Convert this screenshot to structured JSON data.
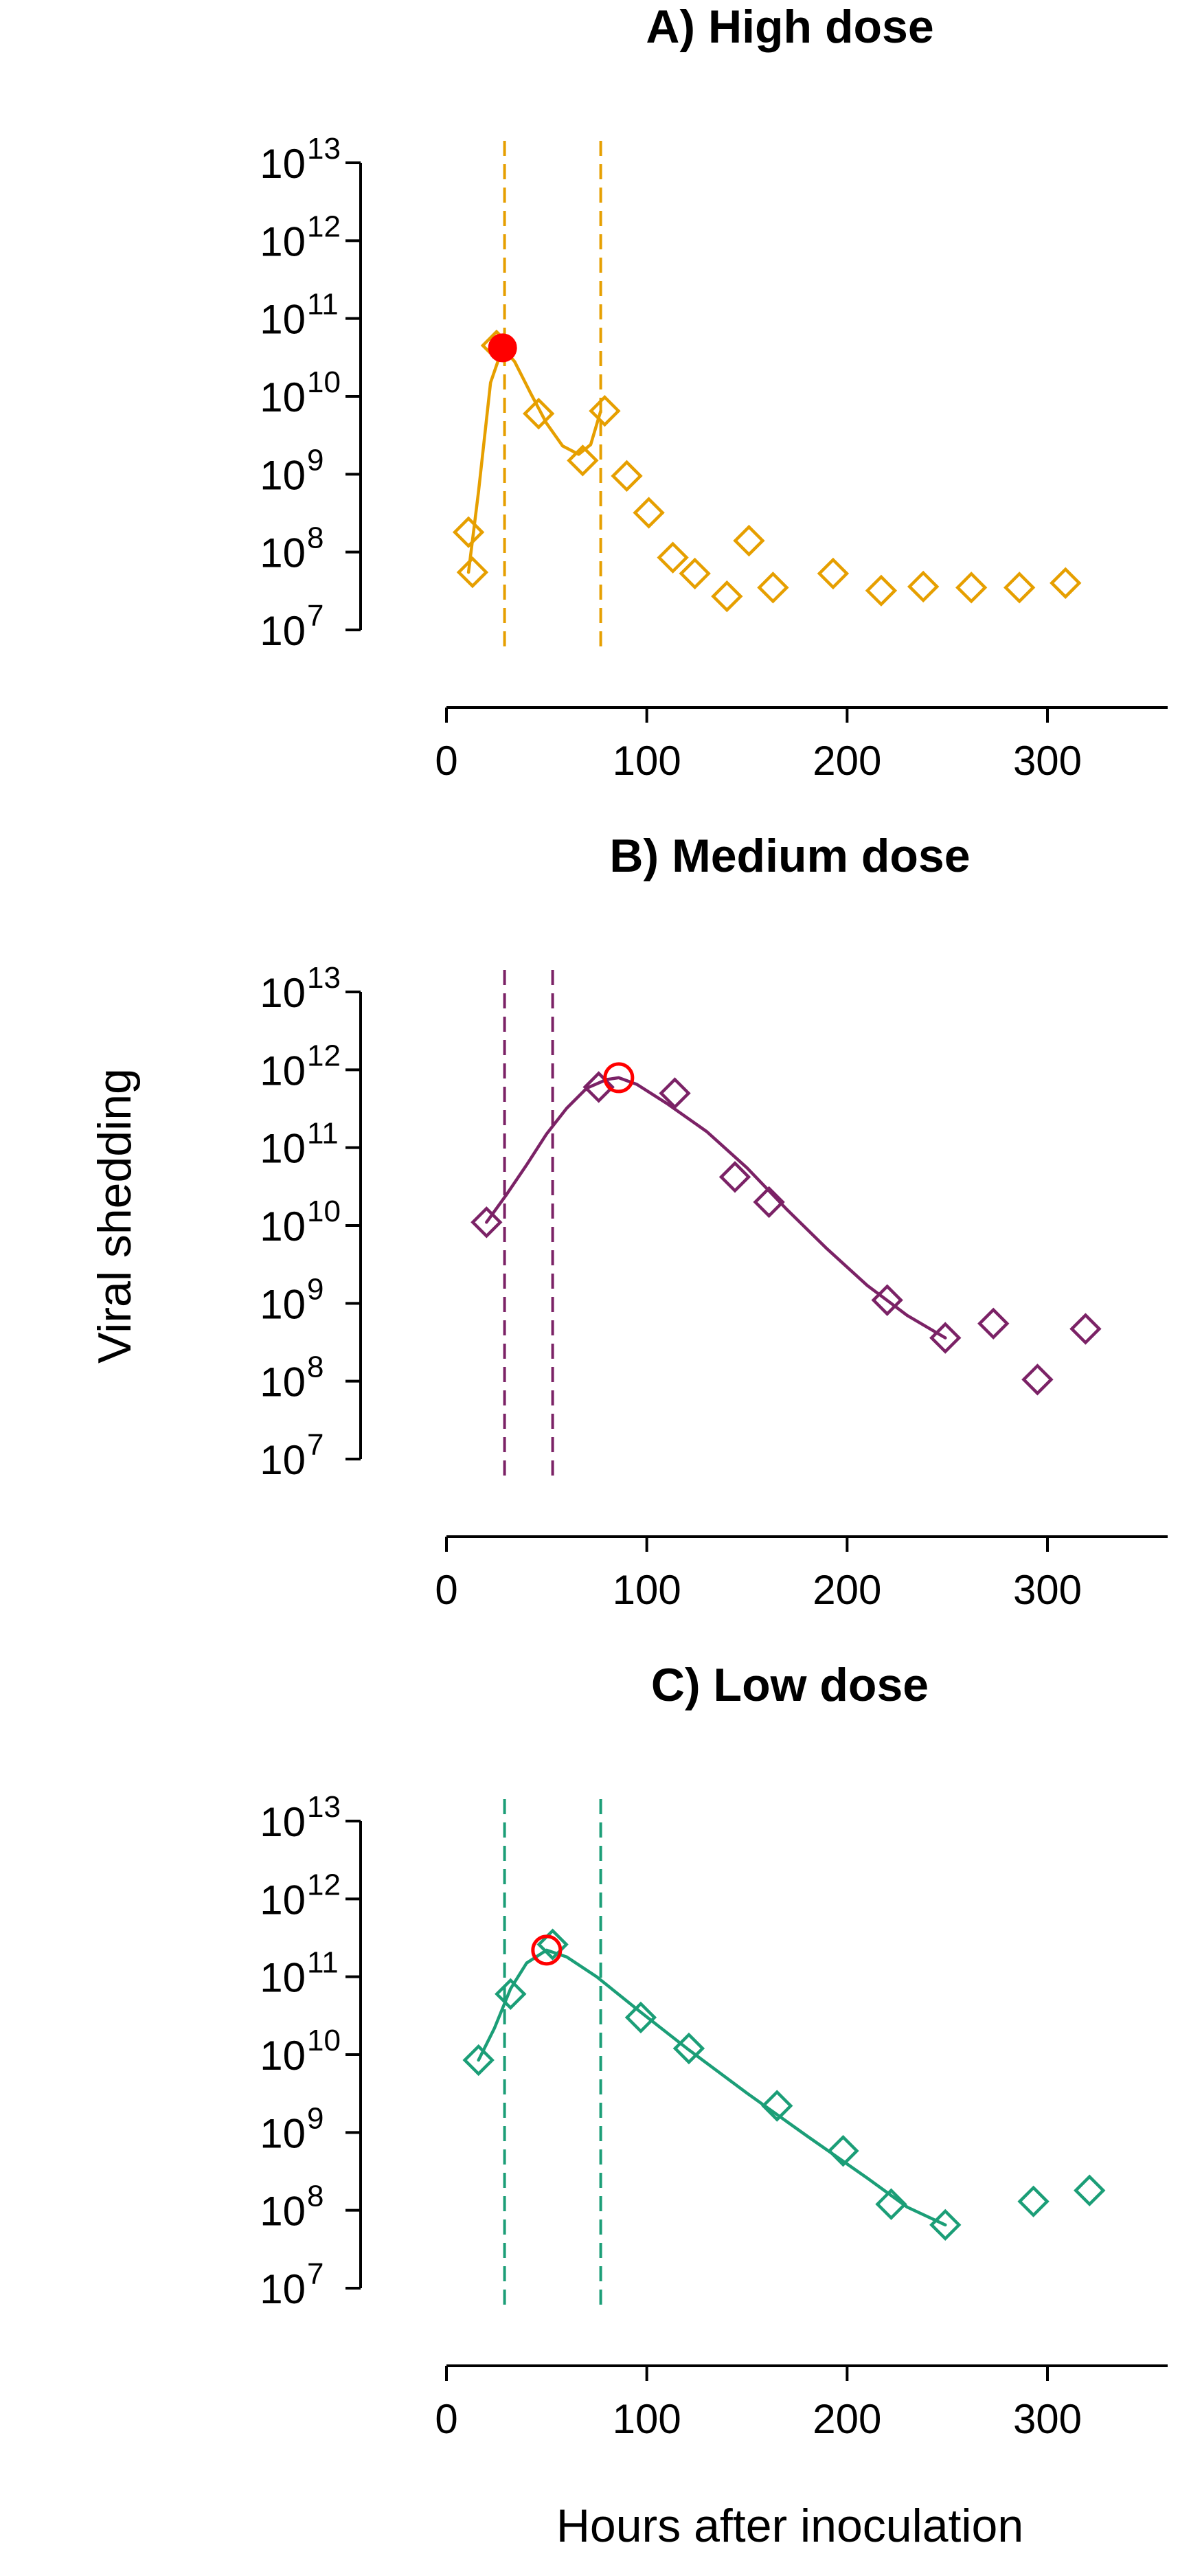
{
  "figure": {
    "ylabel": "Viral shedding",
    "xlabel": "Hours after inoculation"
  },
  "chart_data": [
    {
      "type": "scatter",
      "title": "A) High dose",
      "color": "#E69F00",
      "y_scale": "log",
      "ylim": [
        10000000.0,
        10000000000000.0
      ],
      "y_ticks": [
        {
          "base": "10",
          "exp": "7"
        },
        {
          "base": "10",
          "exp": "8"
        },
        {
          "base": "10",
          "exp": "9"
        },
        {
          "base": "10",
          "exp": "10"
        },
        {
          "base": "10",
          "exp": "11"
        },
        {
          "base": "10",
          "exp": "12"
        },
        {
          "base": "10",
          "exp": "13"
        }
      ],
      "xlim": [
        0,
        360
      ],
      "x_ticks": [
        "0",
        "100",
        "200",
        "300"
      ],
      "vlines": [
        29,
        77
      ],
      "points": [
        {
          "x": 11,
          "y": 180000000.0
        },
        {
          "x": 13,
          "y": 55000000.0
        },
        {
          "x": 25,
          "y": 45000000000.0
        },
        {
          "x": 46,
          "y": 6000000000.0
        },
        {
          "x": 68,
          "y": 1500000000.0
        },
        {
          "x": 79,
          "y": 6500000000.0
        },
        {
          "x": 90,
          "y": 950000000.0
        },
        {
          "x": 101,
          "y": 320000000.0
        },
        {
          "x": 113,
          "y": 85000000.0
        },
        {
          "x": 124,
          "y": 53000000.0
        },
        {
          "x": 140,
          "y": 27000000.0
        },
        {
          "x": 151,
          "y": 140000000.0
        },
        {
          "x": 163,
          "y": 35000000.0
        },
        {
          "x": 193,
          "y": 53000000.0
        },
        {
          "x": 217,
          "y": 32000000.0
        },
        {
          "x": 238,
          "y": 36000000.0
        },
        {
          "x": 262,
          "y": 35000000.0
        },
        {
          "x": 286,
          "y": 35000000.0
        },
        {
          "x": 309,
          "y": 40000000.0
        }
      ],
      "fit": [
        {
          "x": 11,
          "y": 55000000.0
        },
        {
          "x": 16,
          "y": 600000000.0
        },
        {
          "x": 22,
          "y": 15000000000.0
        },
        {
          "x": 28,
          "y": 42000000000.0
        },
        {
          "x": 34,
          "y": 28000000000.0
        },
        {
          "x": 42,
          "y": 11000000000.0
        },
        {
          "x": 50,
          "y": 4500000000.0
        },
        {
          "x": 58,
          "y": 2300000000.0
        },
        {
          "x": 66,
          "y": 1800000000.0
        },
        {
          "x": 72,
          "y": 2400000000.0
        },
        {
          "x": 77,
          "y": 6500000000.0
        }
      ],
      "peak": {
        "x": 28,
        "y": 42000000000.0,
        "filled": true
      }
    },
    {
      "type": "scatter",
      "title": "B) Medium dose",
      "color": "#7B2266",
      "y_scale": "log",
      "ylim": [
        10000000.0,
        10000000000000.0
      ],
      "y_ticks": [
        {
          "base": "10",
          "exp": "7"
        },
        {
          "base": "10",
          "exp": "8"
        },
        {
          "base": "10",
          "exp": "9"
        },
        {
          "base": "10",
          "exp": "10"
        },
        {
          "base": "10",
          "exp": "11"
        },
        {
          "base": "10",
          "exp": "12"
        },
        {
          "base": "10",
          "exp": "13"
        }
      ],
      "xlim": [
        0,
        360
      ],
      "x_ticks": [
        "0",
        "100",
        "200",
        "300"
      ],
      "vlines": [
        29,
        53
      ],
      "points": [
        {
          "x": 20,
          "y": 11000000000.0
        },
        {
          "x": 76,
          "y": 600000000000.0
        },
        {
          "x": 114,
          "y": 500000000000.0
        },
        {
          "x": 144,
          "y": 42000000000.0
        },
        {
          "x": 161,
          "y": 20000000000.0
        },
        {
          "x": 220,
          "y": 1100000000.0
        },
        {
          "x": 249,
          "y": 360000000.0
        },
        {
          "x": 273,
          "y": 550000000.0
        },
        {
          "x": 295,
          "y": 105000000.0
        },
        {
          "x": 319,
          "y": 470000000.0
        }
      ],
      "fit": [
        {
          "x": 20,
          "y": 11000000000.0
        },
        {
          "x": 30,
          "y": 25000000000.0
        },
        {
          "x": 40,
          "y": 60000000000.0
        },
        {
          "x": 50,
          "y": 150000000000.0
        },
        {
          "x": 60,
          "y": 320000000000.0
        },
        {
          "x": 70,
          "y": 580000000000.0
        },
        {
          "x": 80,
          "y": 750000000000.0
        },
        {
          "x": 86,
          "y": 790000000000.0
        },
        {
          "x": 95,
          "y": 650000000000.0
        },
        {
          "x": 110,
          "y": 370000000000.0
        },
        {
          "x": 130,
          "y": 160000000000.0
        },
        {
          "x": 150,
          "y": 55000000000.0
        },
        {
          "x": 170,
          "y": 16000000000.0
        },
        {
          "x": 190,
          "y": 5000000000.0
        },
        {
          "x": 210,
          "y": 1700000000.0
        },
        {
          "x": 230,
          "y": 700000000.0
        },
        {
          "x": 249,
          "y": 360000000.0
        }
      ],
      "peak": {
        "x": 86,
        "y": 790000000000.0,
        "filled": false
      }
    },
    {
      "type": "scatter",
      "title": "C) Low dose",
      "color": "#1B9E77",
      "y_scale": "log",
      "ylim": [
        10000000.0,
        10000000000000.0
      ],
      "y_ticks": [
        {
          "base": "10",
          "exp": "7"
        },
        {
          "base": "10",
          "exp": "8"
        },
        {
          "base": "10",
          "exp": "9"
        },
        {
          "base": "10",
          "exp": "10"
        },
        {
          "base": "10",
          "exp": "11"
        },
        {
          "base": "10",
          "exp": "12"
        },
        {
          "base": "10",
          "exp": "13"
        }
      ],
      "xlim": [
        0,
        360
      ],
      "x_ticks": [
        "0",
        "100",
        "200",
        "300"
      ],
      "vlines": [
        29,
        77
      ],
      "points": [
        {
          "x": 16,
          "y": 8500000000.0
        },
        {
          "x": 32,
          "y": 60000000000.0
        },
        {
          "x": 53,
          "y": 260000000000.0
        },
        {
          "x": 97,
          "y": 30000000000.0
        },
        {
          "x": 121,
          "y": 12000000000.0
        },
        {
          "x": 165,
          "y": 2200000000.0
        },
        {
          "x": 198,
          "y": 580000000.0
        },
        {
          "x": 222,
          "y": 120000000.0
        },
        {
          "x": 249,
          "y": 65000000.0
        },
        {
          "x": 293,
          "y": 130000000.0
        },
        {
          "x": 321,
          "y": 180000000.0
        }
      ],
      "fit": [
        {
          "x": 16,
          "y": 8500000000.0
        },
        {
          "x": 24,
          "y": 22000000000.0
        },
        {
          "x": 32,
          "y": 70000000000.0
        },
        {
          "x": 40,
          "y": 150000000000.0
        },
        {
          "x": 50,
          "y": 220000000000.0
        },
        {
          "x": 60,
          "y": 180000000000.0
        },
        {
          "x": 75,
          "y": 100000000000.0
        },
        {
          "x": 97,
          "y": 35000000000.0
        },
        {
          "x": 121,
          "y": 11500000000.0
        },
        {
          "x": 150,
          "y": 3200000000.0
        },
        {
          "x": 180,
          "y": 900000000.0
        },
        {
          "x": 210,
          "y": 260000000.0
        },
        {
          "x": 230,
          "y": 110000000.0
        },
        {
          "x": 249,
          "y": 65000000.0
        }
      ],
      "peak": {
        "x": 50,
        "y": 220000000000.0,
        "filled": false
      }
    }
  ]
}
